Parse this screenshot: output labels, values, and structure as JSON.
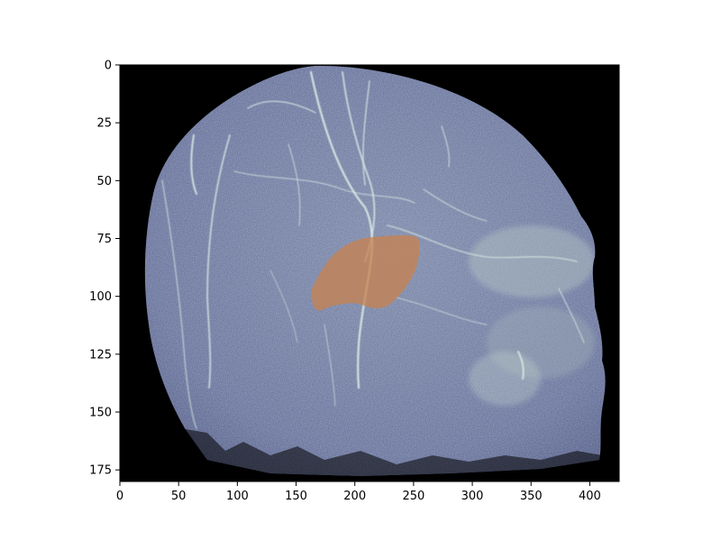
{
  "chart_data": {
    "type": "heatmap",
    "title": "",
    "xlabel": "",
    "ylabel": "",
    "xlim": [
      0,
      425
    ],
    "ylim": [
      180,
      0
    ],
    "x_ticks": [
      0,
      50,
      100,
      150,
      200,
      250,
      300,
      350,
      400
    ],
    "y_ticks": [
      0,
      25,
      50,
      75,
      100,
      125,
      150,
      175
    ],
    "x_tick_labels": [
      "0",
      "50",
      "100",
      "150",
      "200",
      "250",
      "300",
      "350",
      "400"
    ],
    "y_tick_labels": [
      "0",
      "25",
      "50",
      "75",
      "100",
      "125",
      "150",
      "175"
    ],
    "grid": false,
    "image": {
      "content": "maximum intensity projection of a head, lateral view, facing right",
      "background_color": "#000000",
      "tissue_color": "#6f7a9e",
      "vessel_color": "#d8eae4"
    },
    "overlay": {
      "color": "#c8824e",
      "opacity": 0.75,
      "outline": [
        [
          165,
          95
        ],
        [
          180,
          83
        ],
        [
          200,
          76
        ],
        [
          225,
          74
        ],
        [
          250,
          74
        ],
        [
          255,
          78
        ],
        [
          252,
          88
        ],
        [
          242,
          97
        ],
        [
          228,
          104
        ],
        [
          215,
          105
        ],
        [
          200,
          103
        ],
        [
          182,
          104
        ],
        [
          168,
          106
        ],
        [
          163,
          100
        ]
      ]
    }
  }
}
